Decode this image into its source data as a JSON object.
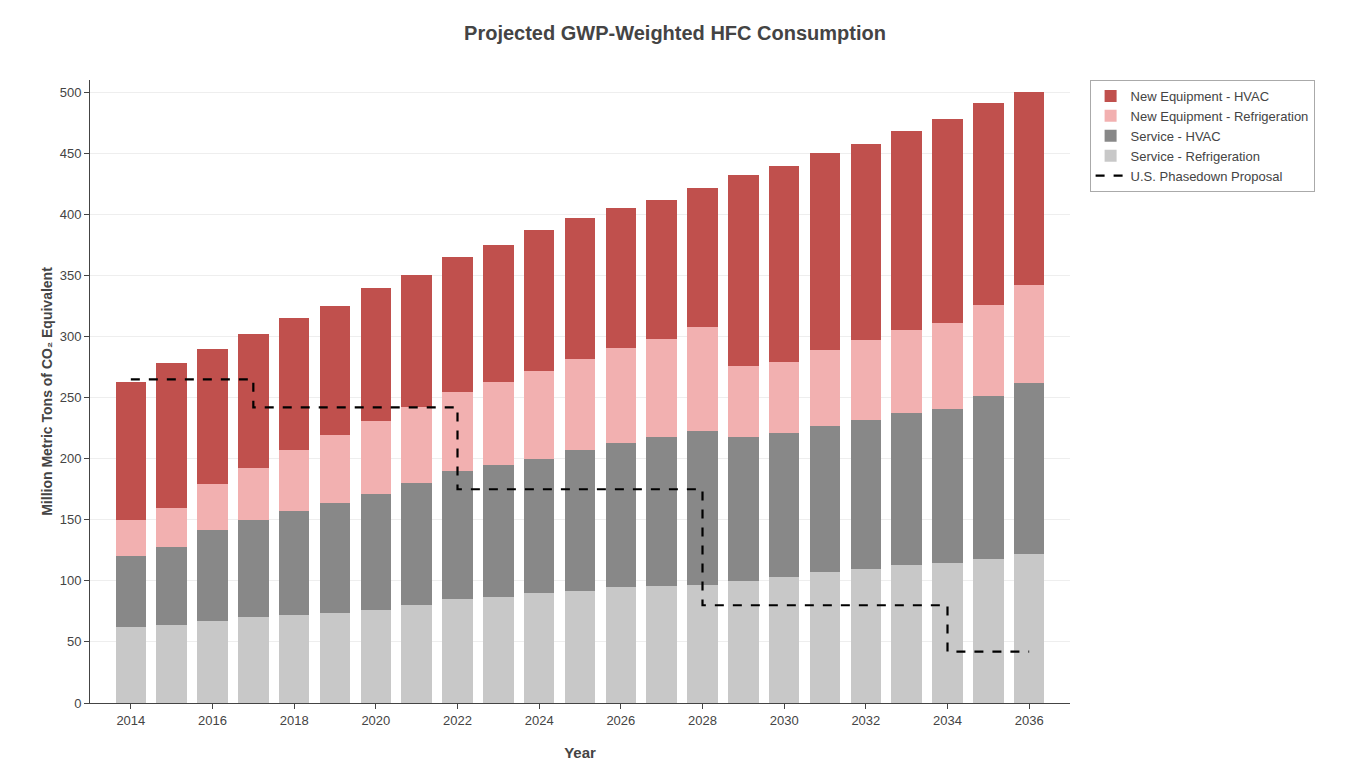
{
  "chart_data": {
    "type": "bar",
    "stacked": true,
    "title": "Projected GWP-Weighted HFC Consumption",
    "xlabel": "Year",
    "ylabel": "Million Metric Tons of CO₂ Equivalent",
    "x": [
      2014,
      2015,
      2016,
      2017,
      2018,
      2019,
      2020,
      2021,
      2022,
      2023,
      2024,
      2025,
      2026,
      2027,
      2028,
      2029,
      2030,
      2031,
      2032,
      2033,
      2034,
      2035,
      2036
    ],
    "series": [
      {
        "name": "Service - Refrigeration",
        "type": "bar",
        "color": "#c8c8c8",
        "values": [
          62,
          64,
          67,
          70,
          72,
          74,
          76,
          80,
          85,
          87,
          90,
          92,
          95,
          96,
          97,
          100,
          103,
          107,
          110,
          113,
          115,
          118,
          122
        ]
      },
      {
        "name": "Service - HVAC",
        "type": "bar",
        "color": "#888888",
        "values": [
          58,
          64,
          75,
          80,
          85,
          90,
          95,
          100,
          105,
          108,
          110,
          115,
          118,
          122,
          126,
          118,
          118,
          120,
          122,
          124,
          126,
          133,
          140
        ]
      },
      {
        "name": "New Equipment - Refrigeration",
        "type": "bar",
        "color": "#f2b0b0",
        "values": [
          30,
          32,
          37,
          42,
          50,
          55,
          60,
          62,
          65,
          68,
          72,
          75,
          78,
          80,
          85,
          58,
          58,
          62,
          65,
          68,
          70,
          75,
          80
        ]
      },
      {
        "name": "New Equipment - HVAC",
        "type": "bar",
        "color": "#c0504d",
        "values": [
          113,
          118,
          111,
          110,
          108,
          106,
          109,
          108,
          110,
          112,
          115,
          115,
          114,
          114,
          114,
          156,
          161,
          161,
          161,
          163,
          167,
          165,
          158
        ]
      },
      {
        "name": "U.S. Phasedown Proposal",
        "type": "line",
        "color": "#000000",
        "line_style": "dashed",
        "x": [
          2014,
          2017,
          2017,
          2022,
          2022,
          2028,
          2028,
          2034,
          2034,
          2036
        ],
        "values": [
          265,
          265,
          242,
          242,
          175,
          175,
          80,
          80,
          42,
          42
        ]
      }
    ],
    "xlim": [
      2013,
      2037
    ],
    "xticks": [
      2014,
      2016,
      2018,
      2020,
      2022,
      2024,
      2026,
      2028,
      2030,
      2032,
      2034,
      2036
    ],
    "ylim": [
      0,
      510
    ],
    "yticks": [
      0,
      50,
      100,
      150,
      200,
      250,
      300,
      350,
      400,
      450,
      500
    ],
    "grid": true,
    "legend": "right"
  }
}
